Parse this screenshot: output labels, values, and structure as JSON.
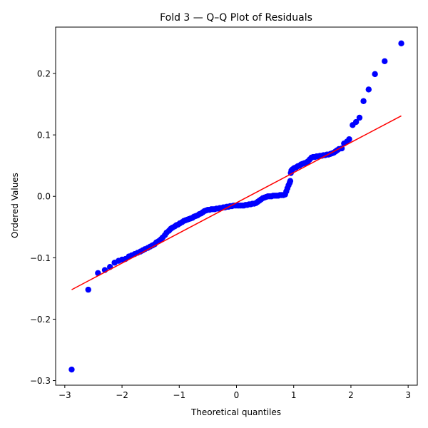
{
  "chart_data": {
    "type": "scatter",
    "title": "Fold 3 — Q–Q Plot of Residuals",
    "xlabel": "Theoretical quantiles",
    "ylabel": "Ordered Values",
    "xlim": [
      -3.16,
      3.16
    ],
    "ylim": [
      -0.3075,
      0.2755
    ],
    "xticks": [
      {
        "value": -3,
        "label": "−3"
      },
      {
        "value": -2,
        "label": "−2"
      },
      {
        "value": -1,
        "label": "−1"
      },
      {
        "value": 0,
        "label": "0"
      },
      {
        "value": 1,
        "label": "1"
      },
      {
        "value": 2,
        "label": "2"
      },
      {
        "value": 3,
        "label": "3"
      }
    ],
    "yticks": [
      {
        "value": -0.3,
        "label": "−0.3"
      },
      {
        "value": -0.2,
        "label": "−0.2"
      },
      {
        "value": -0.1,
        "label": "−0.1"
      },
      {
        "value": 0.0,
        "label": "0.0"
      },
      {
        "value": 0.1,
        "label": "0.1"
      },
      {
        "value": 0.2,
        "label": "0.2"
      }
    ],
    "grid": false,
    "series": [
      {
        "kind": "points",
        "color": "#0000ff",
        "points": [
          [
            -2.88,
            -0.282
          ],
          [
            -2.59,
            -0.152
          ],
          [
            -2.42,
            -0.125
          ],
          [
            -2.3,
            -0.12
          ],
          [
            -2.21,
            -0.115
          ],
          [
            -2.13,
            -0.108
          ],
          [
            -2.06,
            -0.105
          ],
          [
            -2.0,
            -0.103
          ],
          [
            -1.94,
            -0.102
          ],
          [
            -1.88,
            -0.098
          ],
          [
            -1.83,
            -0.096
          ],
          [
            -1.78,
            -0.094
          ],
          [
            -1.73,
            -0.092
          ],
          [
            -1.68,
            -0.09
          ],
          [
            -1.64,
            -0.088
          ],
          [
            -1.6,
            -0.086
          ],
          [
            -1.55,
            -0.084
          ],
          [
            -1.51,
            -0.082
          ],
          [
            -1.47,
            -0.08
          ],
          [
            -1.43,
            -0.078
          ],
          [
            -1.4,
            -0.075
          ],
          [
            -1.36,
            -0.073
          ],
          [
            -1.32,
            -0.07
          ],
          [
            -1.29,
            -0.067
          ],
          [
            -1.25,
            -0.063
          ],
          [
            -1.22,
            -0.059
          ],
          [
            -1.18,
            -0.056
          ],
          [
            -1.15,
            -0.053
          ],
          [
            -1.12,
            -0.051
          ],
          [
            -1.08,
            -0.049
          ],
          [
            -1.05,
            -0.047
          ],
          [
            -1.02,
            -0.046
          ],
          [
            -0.99,
            -0.044
          ],
          [
            -0.95,
            -0.042
          ],
          [
            -0.92,
            -0.04
          ],
          [
            -0.89,
            -0.039
          ],
          [
            -0.86,
            -0.038
          ],
          [
            -0.83,
            -0.037
          ],
          [
            -0.8,
            -0.036
          ],
          [
            -0.77,
            -0.035
          ],
          [
            -0.74,
            -0.033
          ],
          [
            -0.71,
            -0.032
          ],
          [
            -0.68,
            -0.031
          ],
          [
            -0.65,
            -0.029
          ],
          [
            -0.62,
            -0.028
          ],
          [
            -0.59,
            -0.026
          ],
          [
            -0.56,
            -0.024
          ],
          [
            -0.53,
            -0.023
          ],
          [
            -0.5,
            -0.022
          ],
          [
            -0.47,
            -0.022
          ],
          [
            -0.44,
            -0.021
          ],
          [
            -0.41,
            -0.021
          ],
          [
            -0.38,
            -0.021
          ],
          [
            -0.35,
            -0.02
          ],
          [
            -0.32,
            -0.02
          ],
          [
            -0.29,
            -0.019
          ],
          [
            -0.26,
            -0.019
          ],
          [
            -0.23,
            -0.018
          ],
          [
            -0.2,
            -0.018
          ],
          [
            -0.17,
            -0.017
          ],
          [
            -0.14,
            -0.017
          ],
          [
            -0.11,
            -0.016
          ],
          [
            -0.08,
            -0.016
          ],
          [
            -0.05,
            -0.015
          ],
          [
            -0.02,
            -0.015
          ],
          [
            0.01,
            -0.015
          ],
          [
            0.04,
            -0.015
          ],
          [
            0.07,
            -0.015
          ],
          [
            0.1,
            -0.015
          ],
          [
            0.13,
            -0.015
          ],
          [
            0.16,
            -0.014
          ],
          [
            0.19,
            -0.014
          ],
          [
            0.22,
            -0.013
          ],
          [
            0.25,
            -0.013
          ],
          [
            0.28,
            -0.012
          ],
          [
            0.31,
            -0.012
          ],
          [
            0.34,
            -0.011
          ],
          [
            0.37,
            -0.009
          ],
          [
            0.4,
            -0.007
          ],
          [
            0.43,
            -0.005
          ],
          [
            0.46,
            -0.003
          ],
          [
            0.49,
            -0.002
          ],
          [
            0.52,
            -0.001
          ],
          [
            0.55,
            0.0
          ],
          [
            0.58,
            0.0
          ],
          [
            0.61,
            0.0
          ],
          [
            0.64,
            0.001
          ],
          [
            0.67,
            0.001
          ],
          [
            0.7,
            0.001
          ],
          [
            0.73,
            0.001
          ],
          [
            0.76,
            0.002
          ],
          [
            0.79,
            0.002
          ],
          [
            0.82,
            0.002
          ],
          [
            0.85,
            0.003
          ],
          [
            0.87,
            0.008
          ],
          [
            0.89,
            0.013
          ],
          [
            0.91,
            0.018
          ],
          [
            0.93,
            0.022
          ],
          [
            0.94,
            0.025
          ],
          [
            0.95,
            0.038
          ],
          [
            0.96,
            0.042
          ],
          [
            0.98,
            0.044
          ],
          [
            1.01,
            0.046
          ],
          [
            1.04,
            0.047
          ],
          [
            1.07,
            0.049
          ],
          [
            1.1,
            0.05
          ],
          [
            1.13,
            0.052
          ],
          [
            1.16,
            0.053
          ],
          [
            1.19,
            0.054
          ],
          [
            1.22,
            0.055
          ],
          [
            1.25,
            0.057
          ],
          [
            1.28,
            0.06
          ],
          [
            1.31,
            0.063
          ],
          [
            1.34,
            0.064
          ],
          [
            1.37,
            0.064
          ],
          [
            1.4,
            0.065
          ],
          [
            1.43,
            0.065
          ],
          [
            1.46,
            0.066
          ],
          [
            1.49,
            0.066
          ],
          [
            1.52,
            0.067
          ],
          [
            1.55,
            0.067
          ],
          [
            1.58,
            0.068
          ],
          [
            1.61,
            0.068
          ],
          [
            1.64,
            0.069
          ],
          [
            1.67,
            0.07
          ],
          [
            1.7,
            0.071
          ],
          [
            1.73,
            0.073
          ],
          [
            1.76,
            0.075
          ],
          [
            1.79,
            0.077
          ],
          [
            1.84,
            0.078
          ],
          [
            1.88,
            0.086
          ],
          [
            1.93,
            0.089
          ],
          [
            1.97,
            0.093
          ],
          [
            2.03,
            0.116
          ],
          [
            2.09,
            0.121
          ],
          [
            2.15,
            0.128
          ],
          [
            2.22,
            0.155
          ],
          [
            2.31,
            0.174
          ],
          [
            2.42,
            0.199
          ],
          [
            2.59,
            0.22
          ],
          [
            2.88,
            0.249
          ]
        ]
      },
      {
        "kind": "line",
        "color": "#ff0000",
        "points": [
          [
            -2.88,
            -0.152
          ],
          [
            2.88,
            0.131
          ]
        ]
      }
    ]
  }
}
